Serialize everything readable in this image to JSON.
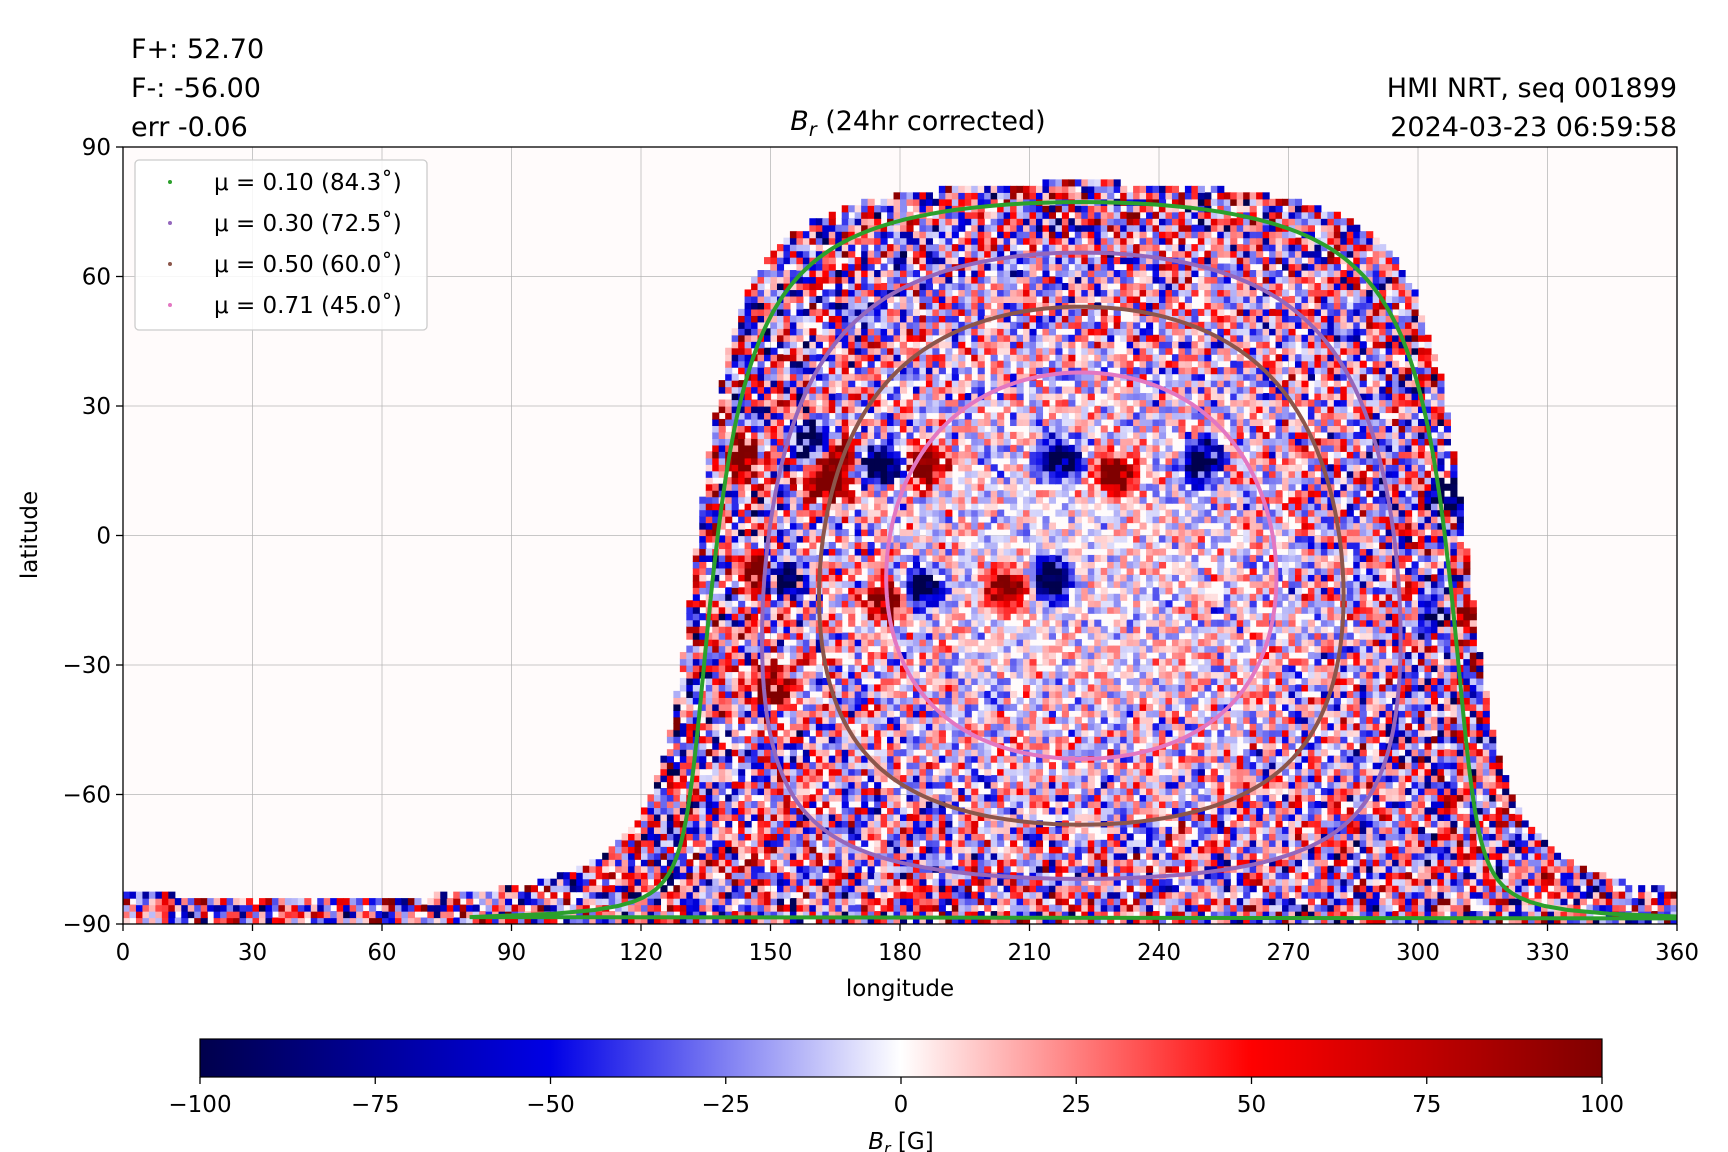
{
  "header": {
    "flux_plus": "F+: 52.70",
    "flux_minus": "F-: -56.00",
    "err": "err -0.06",
    "title_symbol": "B",
    "title_sub": "r",
    "title_rest": " (24hr corrected)",
    "source": "HMI NRT, seq 001899",
    "timestamp": "2024-03-23 06:59:58"
  },
  "chart_data": {
    "type": "heatmap",
    "xlabel": "longitude",
    "ylabel": "latitude",
    "xlim": [
      0,
      360
    ],
    "ylim": [
      -90,
      90
    ],
    "xticks": [
      0,
      30,
      60,
      90,
      120,
      150,
      180,
      210,
      240,
      270,
      300,
      330,
      360
    ],
    "yticks": [
      90,
      60,
      30,
      0,
      -30,
      -60,
      -90
    ],
    "ytick_labels": [
      "90",
      "60",
      "30",
      "0",
      "−30",
      "−60",
      "−90"
    ],
    "grid": true,
    "legend_position": "upper-left",
    "colormap": "seismic",
    "clim": [
      -100,
      100
    ],
    "disk_center_lon": 222,
    "disk_center_lat": -7,
    "contours": [
      {
        "name": "μ = 0.10 (84.3˚)",
        "mu": 0.1,
        "angle_deg": 84.3,
        "color": "#2ca02c"
      },
      {
        "name": "μ = 0.30 (72.5˚)",
        "mu": 0.3,
        "angle_deg": 72.5,
        "color": "#9467bd"
      },
      {
        "name": "μ = 0.50 (60.0˚)",
        "mu": 0.5,
        "angle_deg": 60.0,
        "color": "#8c564b"
      },
      {
        "name": "μ = 0.71 (45.0˚)",
        "mu": 0.71,
        "angle_deg": 45.0,
        "color": "#e377c2"
      }
    ],
    "active_regions": [
      {
        "lon": 217,
        "lat": 18,
        "sign": -1
      },
      {
        "lon": 230,
        "lat": 14,
        "sign": 1
      },
      {
        "lon": 175,
        "lat": 16,
        "sign": -1
      },
      {
        "lon": 186,
        "lat": 16,
        "sign": 1
      },
      {
        "lon": 165,
        "lat": 18,
        "sign": 1
      },
      {
        "lon": 163,
        "lat": 12,
        "sign": 1
      },
      {
        "lon": 160,
        "lat": 22,
        "sign": -1
      },
      {
        "lon": 205,
        "lat": -12,
        "sign": 1
      },
      {
        "lon": 215,
        "lat": -10,
        "sign": -1
      },
      {
        "lon": 185,
        "lat": -12,
        "sign": -1
      },
      {
        "lon": 177,
        "lat": -15,
        "sign": 1
      },
      {
        "lon": 147,
        "lat": -9,
        "sign": 1
      },
      {
        "lon": 153,
        "lat": -9,
        "sign": -1
      },
      {
        "lon": 305,
        "lat": -18,
        "sign": -1
      },
      {
        "lon": 309,
        "lat": -18,
        "sign": 1
      },
      {
        "lon": 307,
        "lat": 10,
        "sign": -1
      },
      {
        "lon": 143,
        "lat": 18,
        "sign": 1
      },
      {
        "lon": 150,
        "lat": -35,
        "sign": 1
      },
      {
        "lon": 250,
        "lat": 17,
        "sign": -1
      }
    ],
    "colorbar": {
      "ticks": [
        -100,
        -75,
        -50,
        -25,
        0,
        25,
        50,
        75,
        100
      ],
      "tick_labels": [
        "−100",
        "−75",
        "−50",
        "−25",
        "0",
        "25",
        "50",
        "75",
        "100"
      ],
      "label_symbol": "B",
      "label_sub": "r",
      "label_unit": " [G]"
    }
  }
}
